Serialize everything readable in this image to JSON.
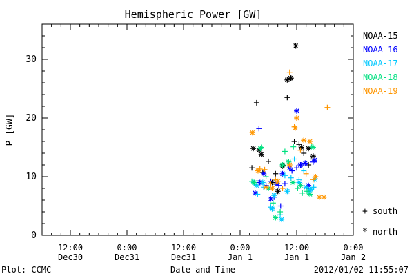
{
  "chart_data": {
    "type": "scatter",
    "title": "Hemispheric Power [GW]",
    "ylabel": "P [GW]",
    "xlabel": "Date and Time",
    "ylim": [
      0,
      36
    ],
    "y_ticks": [
      0,
      10,
      20,
      30
    ],
    "x_range_hours": [
      -6,
      60
    ],
    "x_tick_labels": [
      {
        "hour": 0,
        "line1": "12:00",
        "line2": "Dec30"
      },
      {
        "hour": 12,
        "line1": "0:00",
        "line2": "Dec31"
      },
      {
        "hour": 24,
        "line1": "12:00",
        "line2": "Dec31"
      },
      {
        "hour": 36,
        "line1": "0:00",
        "line2": "Jan 1"
      },
      {
        "hour": 48,
        "line1": "12:00",
        "line2": "Jan 1"
      },
      {
        "hour": 60,
        "line1": "0:00",
        "line2": "Jan 2"
      }
    ],
    "legend_placement": "right",
    "series": [
      {
        "name": "NOAA-15",
        "color": "#000000",
        "south": [
          [
            38.5,
            11.5
          ],
          [
            39.5,
            22.6
          ],
          [
            40.8,
            10.7
          ],
          [
            42.0,
            12.6
          ],
          [
            43.5,
            10.5
          ],
          [
            45.2,
            11.9
          ],
          [
            46.0,
            23.5
          ],
          [
            46.8,
            26.8
          ],
          [
            47.5,
            16.0
          ],
          [
            48.5,
            15.5
          ],
          [
            49.5,
            14.0
          ],
          [
            50.5,
            12.0
          ],
          [
            51.5,
            13.0
          ]
        ],
        "north": [
          [
            38.8,
            14.8
          ],
          [
            40.0,
            14.5
          ],
          [
            40.5,
            13.8
          ],
          [
            42.8,
            9.0
          ],
          [
            44.0,
            7.5
          ],
          [
            46.0,
            26.5
          ],
          [
            46.7,
            26.8
          ],
          [
            47.8,
            32.3
          ],
          [
            49.0,
            15.0
          ],
          [
            50.5,
            14.8
          ],
          [
            51.5,
            13.5
          ],
          [
            45.0,
            11.8
          ]
        ]
      },
      {
        "name": "NOAA-16",
        "color": "#0000ff",
        "south": [
          [
            40.0,
            18.2
          ],
          [
            41.5,
            8.5
          ],
          [
            42.5,
            9.2
          ],
          [
            43.2,
            6.5
          ],
          [
            44.2,
            8.5
          ],
          [
            44.6,
            5.0
          ],
          [
            45.5,
            8.8
          ],
          [
            47.0,
            11.0
          ],
          [
            48.0,
            11.5
          ],
          [
            49.0,
            12.0
          ],
          [
            50.5,
            8.0
          ],
          [
            51.5,
            12.5
          ]
        ],
        "north": [
          [
            39.2,
            7.2
          ],
          [
            40.2,
            9.0
          ],
          [
            41.0,
            10.5
          ],
          [
            42.5,
            6.2
          ],
          [
            43.8,
            8.8
          ],
          [
            45.0,
            10.5
          ],
          [
            46.5,
            11.5
          ],
          [
            48.0,
            21.2
          ],
          [
            48.8,
            12.0
          ],
          [
            49.8,
            12.3
          ],
          [
            50.5,
            8.5
          ],
          [
            51.8,
            12.8
          ]
        ]
      },
      {
        "name": "NOAA-17",
        "color": "#00c8ff",
        "south": [
          [
            38.9,
            9.0
          ],
          [
            39.7,
            7.0
          ],
          [
            41.0,
            8.2
          ],
          [
            42.5,
            4.8
          ],
          [
            44.5,
            3.5
          ],
          [
            45.5,
            10.2
          ],
          [
            46.8,
            9.8
          ],
          [
            47.5,
            13.0
          ],
          [
            48.5,
            9.5
          ],
          [
            49.5,
            11.0
          ],
          [
            50.6,
            7.5
          ],
          [
            51.6,
            8.2
          ]
        ],
        "north": [
          [
            39.5,
            8.5
          ],
          [
            40.8,
            9.0
          ],
          [
            42.8,
            4.5
          ],
          [
            43.2,
            6.8
          ],
          [
            44.8,
            2.7
          ],
          [
            46.0,
            7.5
          ],
          [
            48.5,
            9.0
          ],
          [
            50.0,
            8.2
          ],
          [
            51.0,
            7.8
          ],
          [
            51.8,
            9.5
          ]
        ]
      },
      {
        "name": "NOAA-18",
        "color": "#00e080",
        "south": [
          [
            38.5,
            9.2
          ],
          [
            40.5,
            15.0
          ],
          [
            41.5,
            10.0
          ],
          [
            43.0,
            5.5
          ],
          [
            44.5,
            4.0
          ],
          [
            45.5,
            14.3
          ],
          [
            47.3,
            15.1
          ],
          [
            48.2,
            8.0
          ],
          [
            49.2,
            7.2
          ],
          [
            50.2,
            7.5
          ],
          [
            51.2,
            15.2
          ]
        ],
        "north": [
          [
            39.0,
            9.0
          ],
          [
            40.3,
            14.8
          ],
          [
            42.0,
            8.0
          ],
          [
            43.5,
            3.0
          ],
          [
            45.0,
            12.0
          ],
          [
            46.3,
            12.5
          ],
          [
            47.2,
            9.0
          ],
          [
            48.8,
            8.5
          ],
          [
            50.8,
            7.0
          ],
          [
            51.5,
            15.0
          ]
        ]
      },
      {
        "name": "NOAA-19",
        "color": "#ff9600",
        "south": [
          [
            40.2,
            11.3
          ],
          [
            41.2,
            11.2
          ],
          [
            42.5,
            8.8
          ],
          [
            43.5,
            9.5
          ],
          [
            45.0,
            8.0
          ],
          [
            46.5,
            27.8
          ],
          [
            47.5,
            18.5
          ],
          [
            48.8,
            14.5
          ],
          [
            50.0,
            10.5
          ],
          [
            51.5,
            9.5
          ],
          [
            54.5,
            21.8
          ]
        ],
        "north": [
          [
            38.6,
            17.5
          ],
          [
            39.8,
            11.0
          ],
          [
            41.5,
            8.2
          ],
          [
            42.8,
            8.0
          ],
          [
            44.0,
            9.2
          ],
          [
            46.5,
            12.0
          ],
          [
            47.7,
            18.3
          ],
          [
            48.0,
            20.0
          ],
          [
            49.5,
            16.2
          ],
          [
            50.8,
            16.0
          ],
          [
            52.0,
            10.0
          ],
          [
            52.8,
            6.5
          ],
          [
            53.8,
            6.5
          ]
        ]
      }
    ],
    "symbol_legend": [
      {
        "symbol": "+",
        "label": "south"
      },
      {
        "symbol": "*",
        "label": "north"
      }
    ]
  },
  "footer": {
    "left": "Plot: CCMC",
    "right": "2012/01/02 11:55:07"
  }
}
